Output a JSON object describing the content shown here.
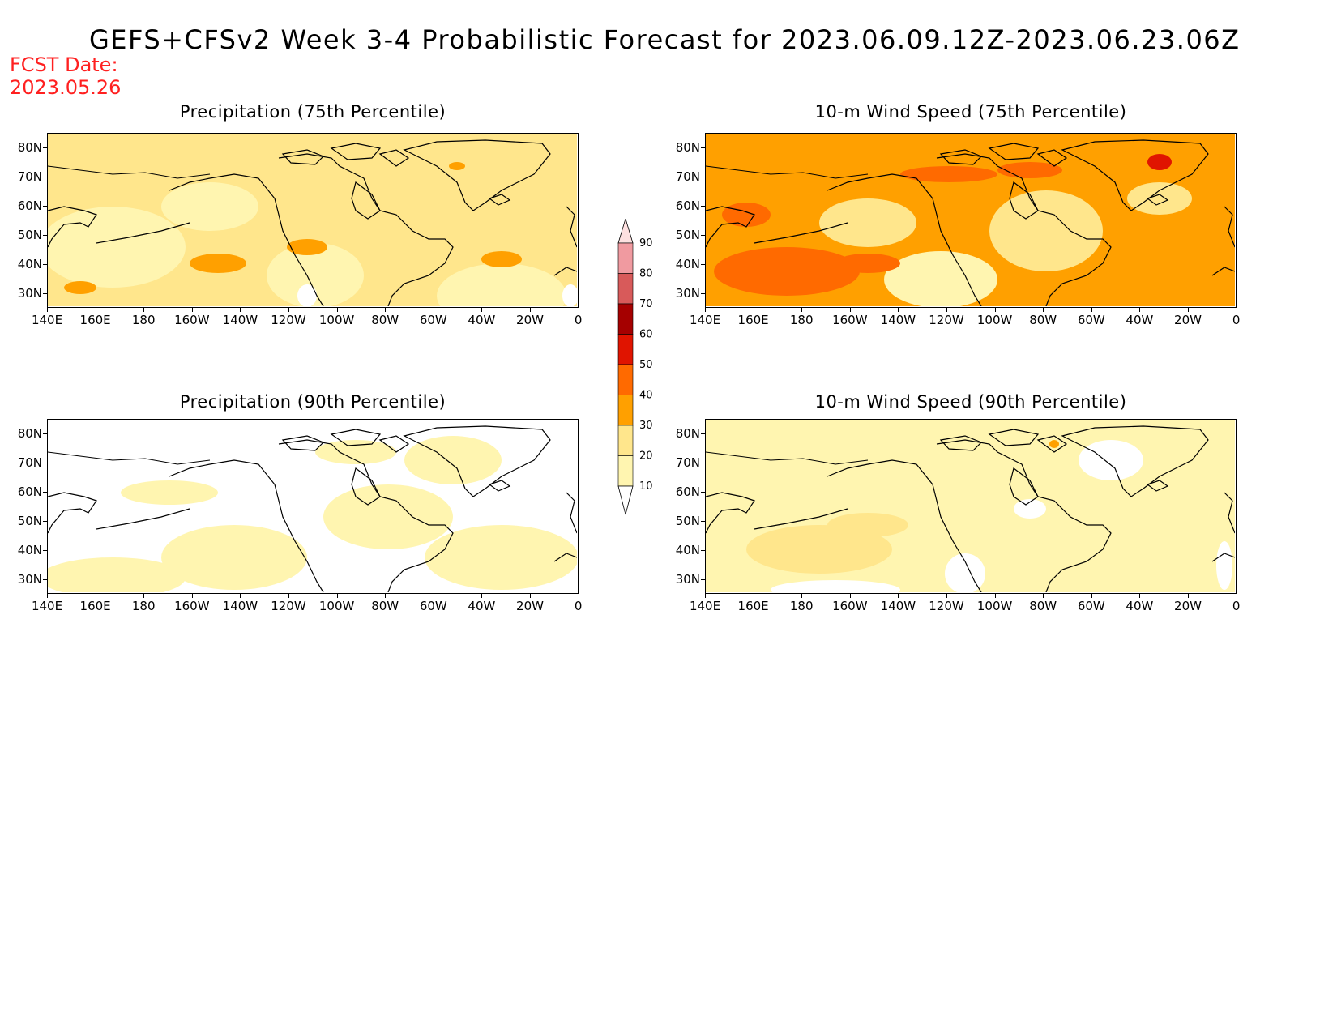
{
  "title": "GEFS+CFSv2 Week 3-4 Probabilistic Forecast for 2023.06.09.12Z-2023.06.23.06Z",
  "fcst_label": "FCST Date:",
  "fcst_date": "2023.05.26",
  "panels": [
    {
      "title": "Precipitation (75th Percentile)",
      "field": "precip75"
    },
    {
      "title": "10-m Wind Speed (75th Percentile)",
      "field": "wind75"
    },
    {
      "title": "Precipitation (90th Percentile)",
      "field": "precip90"
    },
    {
      "title": "10-m Wind Speed (90th Percentile)",
      "field": "wind90"
    }
  ],
  "lat_ticks": [
    "80N",
    "70N",
    "60N",
    "50N",
    "40N",
    "30N"
  ],
  "lon_ticks": [
    "140E",
    "160E",
    "180",
    "160W",
    "140W",
    "120W",
    "100W",
    "80W",
    "60W",
    "40W",
    "20W",
    "0"
  ],
  "colorbar": {
    "levels": [
      "10",
      "20",
      "30",
      "40",
      "50",
      "60",
      "70",
      "80",
      "90"
    ],
    "colors": [
      "#fff5b0",
      "#ffe68c",
      "#ffa000",
      "#ff6a00",
      "#e01400",
      "#a50000",
      "#d85a5a",
      "#f09aa0",
      "#fde0e0"
    ]
  },
  "map_colors": {
    "white": "#ffffff",
    "light_yellow": "#fff5b0",
    "yellow": "#ffe68c",
    "orange": "#ffa000",
    "dark_orange": "#ff6a00",
    "red": "#e01400"
  }
}
